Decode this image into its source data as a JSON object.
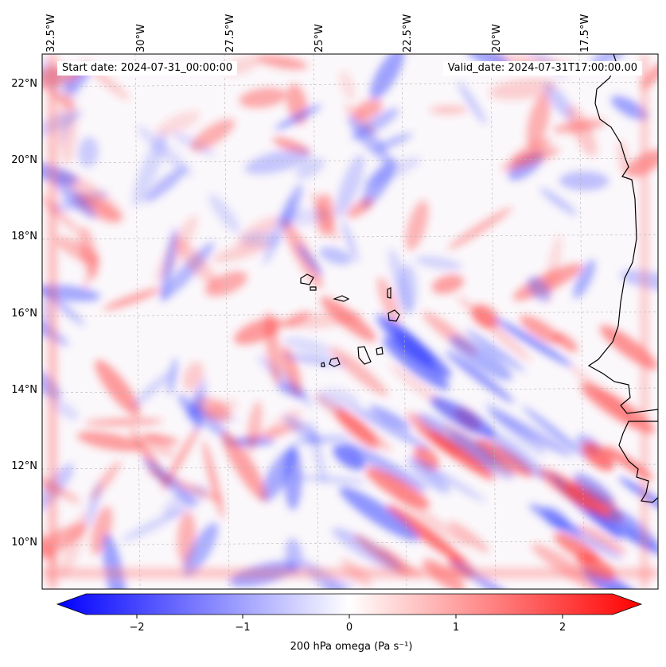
{
  "map": {
    "start_label": "Start date: 2024-07-31_00:00:00",
    "valid_label": "Valid_date: 2024-07-31T17:00:00.00",
    "lon_labels": [
      "32.5°W",
      "30°W",
      "27.5°W",
      "25°W",
      "22.5°W",
      "20°W",
      "17.5°W"
    ],
    "lat_labels": [
      "22°N",
      "20°N",
      "18°N",
      "16°N",
      "14°N",
      "12°N",
      "10°N"
    ],
    "lon_range": [
      -33.0,
      -15.8
    ],
    "lat_range": [
      8.9,
      22.8
    ],
    "field": "200 hPa omega",
    "colormap": "bwr",
    "coastline_color": "#000000"
  },
  "colorbar": {
    "title": "200 hPa omega (Pa s⁻¹)",
    "ticks": [
      "−2",
      "−1",
      "0",
      "1",
      "2"
    ],
    "range": [
      -2.75,
      2.75
    ],
    "extend": "both"
  }
}
